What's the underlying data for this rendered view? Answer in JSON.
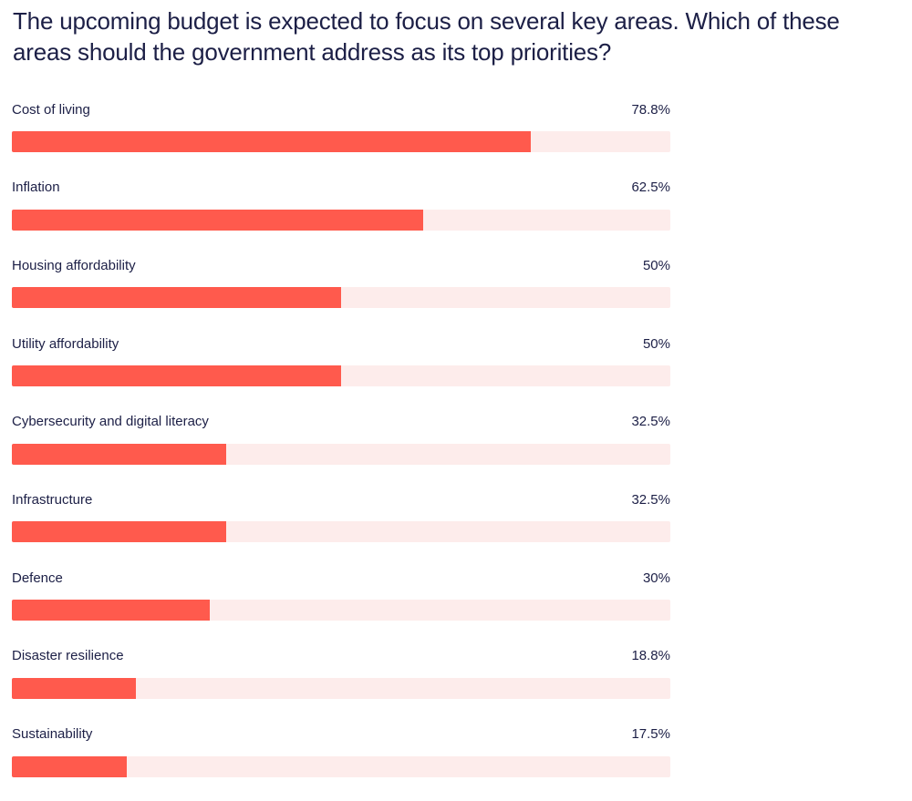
{
  "question": "The upcoming budget is expected to focus on several key areas. Which of these areas should the government address as its top priorities?",
  "colors": {
    "bar_fill": "#ff5a4d",
    "bar_track": "#fdeceb",
    "text": "#1c1f46"
  },
  "chart_data": {
    "type": "bar",
    "orientation": "horizontal",
    "title": "The upcoming budget is expected to focus on several key areas. Which of these areas should the government address as its top priorities?",
    "categories": [
      "Cost of living",
      "Inflation",
      "Housing affordability",
      "Utility affordability",
      "Cybersecurity and digital literacy",
      "Infrastructure",
      "Defence",
      "Disaster resilience",
      "Sustainability"
    ],
    "values": [
      78.8,
      62.5,
      50,
      50,
      32.5,
      32.5,
      30,
      18.8,
      17.5
    ],
    "value_labels": [
      "78.8%",
      "62.5%",
      "50%",
      "50%",
      "32.5%",
      "32.5%",
      "30%",
      "18.8%",
      "17.5%"
    ],
    "xlim": [
      0,
      100
    ],
    "unit": "%",
    "grid": false
  }
}
